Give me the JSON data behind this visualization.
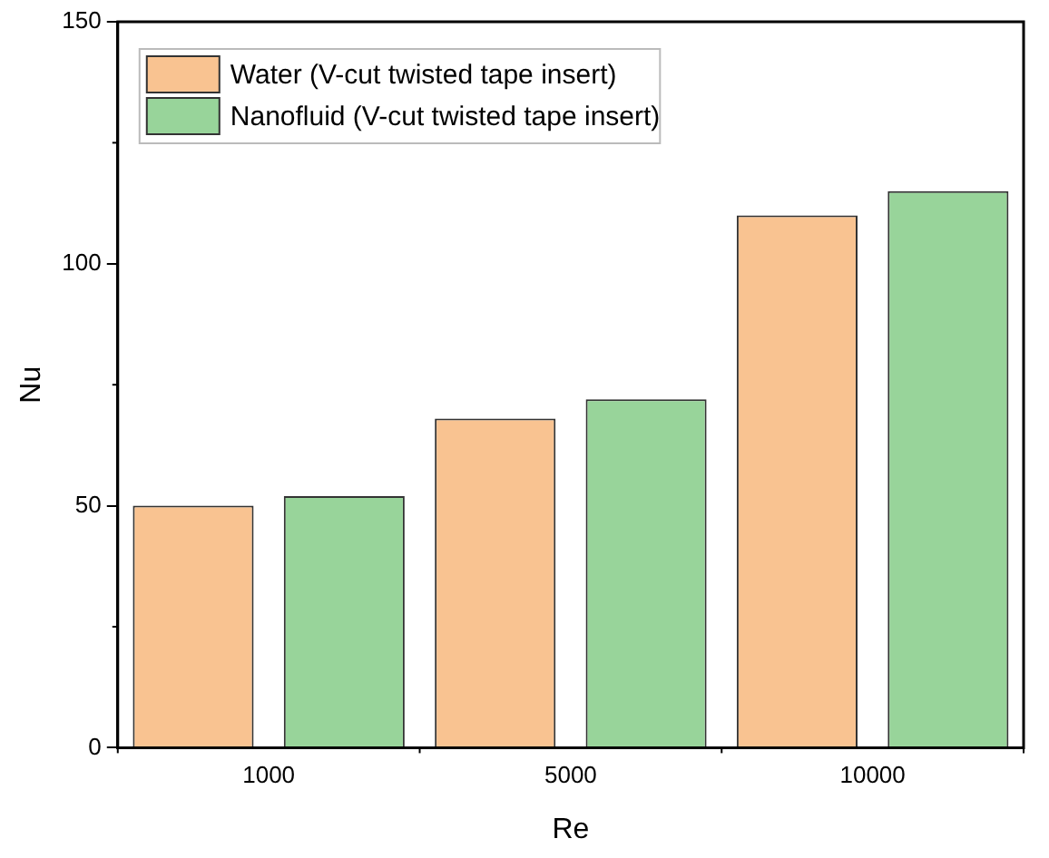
{
  "chart_data": {
    "type": "bar",
    "xlabel": "Re",
    "ylabel": "Nu",
    "categories": [
      "1000",
      "5000",
      "10000"
    ],
    "series": [
      {
        "name": "Water (V-cut twisted tape insert)",
        "color": "#f9c391",
        "values": [
          50,
          68,
          110
        ]
      },
      {
        "name": "Nanofluid (V-cut twisted tape insert)",
        "color": "#98d49a",
        "values": [
          52,
          72,
          115
        ]
      }
    ],
    "ylim": [
      0,
      150
    ],
    "yticks": [
      0,
      50,
      100,
      150
    ],
    "grid": false,
    "legend": "top left"
  }
}
